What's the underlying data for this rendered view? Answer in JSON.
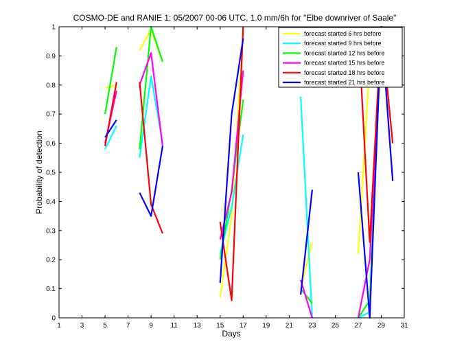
{
  "chart_data": {
    "type": "line",
    "title": "COSMO-DE and RANIE 1: 05/2007 00-06 UTC, 1.0 mm/6h for \"Elbe downriver of Saale\"",
    "xlabel": "Days",
    "ylabel": "Probability of detection",
    "xlim": [
      1,
      31
    ],
    "ylim": [
      0,
      1
    ],
    "xticks": [
      1,
      3,
      5,
      7,
      9,
      11,
      13,
      15,
      17,
      19,
      21,
      23,
      25,
      27,
      29,
      31
    ],
    "xtick_labels": [
      "1",
      "3",
      "5",
      "7",
      "9",
      "11",
      "13",
      "15",
      "17",
      "19",
      "21",
      "23",
      "25",
      "27",
      "29",
      "31"
    ],
    "yticks": [
      0,
      0.1,
      0.2,
      0.3,
      0.4,
      0.5,
      0.6,
      0.7,
      0.8,
      0.9,
      1
    ],
    "ytick_labels": [
      "0",
      "0.1",
      "0.2",
      "0.3",
      "0.4",
      "0.5",
      "0.6",
      "0.7",
      "0.8",
      "0.9",
      "1"
    ],
    "legend_position": "top-right",
    "series": [
      {
        "name": "forecast started 6 hrs before",
        "color": "#ffff00",
        "segments": [
          [
            [
              5,
              0.79
            ],
            [
              6,
              0.8
            ]
          ],
          [
            [
              8,
              0.92
            ],
            [
              9,
              0.99
            ],
            [
              10,
              0.88
            ]
          ],
          [
            [
              15,
              0.07
            ],
            [
              16,
              0.35
            ],
            [
              17,
              0.98
            ]
          ],
          [
            [
              22,
              0.1
            ],
            [
              23,
              0.26
            ]
          ],
          [
            [
              27,
              0.22
            ],
            [
              28,
              0.87
            ],
            [
              29,
              0.97
            ],
            [
              30,
              0.85
            ]
          ]
        ]
      },
      {
        "name": "forecast started 9 hrs before",
        "color": "#00ffff",
        "segments": [
          [
            [
              5,
              0.58
            ],
            [
              6,
              0.66
            ]
          ],
          [
            [
              8,
              0.55
            ],
            [
              9,
              0.83
            ],
            [
              10,
              0.6
            ]
          ],
          [
            [
              15,
              0.22
            ],
            [
              16,
              0.38
            ],
            [
              17,
              0.63
            ]
          ],
          [
            [
              22,
              0.76
            ],
            [
              23,
              0.0
            ]
          ],
          [
            [
              27,
              0.0
            ],
            [
              28,
              0.02
            ],
            [
              29,
              0.99
            ],
            [
              30,
              0.92
            ]
          ]
        ]
      },
      {
        "name": "forecast started 12 hrs before",
        "color": "#00ff00",
        "segments": [
          [
            [
              5,
              0.7
            ],
            [
              6,
              0.93
            ]
          ],
          [
            [
              8,
              0.58
            ],
            [
              9,
              1.0
            ],
            [
              10,
              0.88
            ]
          ],
          [
            [
              15,
              0.2
            ],
            [
              16,
              0.44
            ],
            [
              17,
              0.75
            ]
          ],
          [
            [
              22,
              0.1
            ],
            [
              23,
              0.05
            ]
          ],
          [
            [
              27,
              0.0
            ],
            [
              28,
              0.06
            ],
            [
              29,
              0.97
            ],
            [
              30,
              0.85
            ]
          ]
        ]
      },
      {
        "name": "forecast started 15 hrs before",
        "color": "#ff00ff",
        "segments": [
          [
            [
              5,
              0.6
            ],
            [
              6,
              0.78
            ]
          ],
          [
            [
              8,
              0.8
            ],
            [
              9,
              0.91
            ],
            [
              10,
              0.59
            ]
          ],
          [
            [
              15,
              0.27
            ],
            [
              16,
              0.43
            ],
            [
              17,
              0.85
            ]
          ],
          [
            [
              22,
              0.13
            ],
            [
              23,
              0.0
            ]
          ],
          [
            [
              27,
              0.0
            ],
            [
              28,
              0.2
            ],
            [
              29,
              0.98
            ],
            [
              30,
              0.92
            ]
          ]
        ]
      },
      {
        "name": "forecast started 18 hrs before",
        "color": "#ff0000",
        "segments": [
          [
            [
              5,
              0.59
            ],
            [
              6,
              0.81
            ]
          ],
          [
            [
              8,
              0.81
            ],
            [
              9,
              0.39
            ],
            [
              10,
              0.29
            ]
          ],
          [
            [
              15,
              0.33
            ],
            [
              16,
              0.06
            ],
            [
              17,
              1.0
            ]
          ],
          [
            [
              27,
              1.0
            ],
            [
              28,
              0.26
            ],
            [
              29,
              1.0
            ],
            [
              30,
              0.6
            ]
          ]
        ]
      },
      {
        "name": "forecast started 21 hrs before",
        "color": "#0000ff",
        "segments": [
          [
            [
              5,
              0.62
            ],
            [
              6,
              0.68
            ]
          ],
          [
            [
              8,
              0.43
            ],
            [
              9,
              0.35
            ],
            [
              10,
              0.59
            ]
          ],
          [
            [
              15,
              0.12
            ],
            [
              16,
              0.7
            ],
            [
              17,
              0.96
            ]
          ],
          [
            [
              22,
              0.08
            ],
            [
              23,
              0.44
            ]
          ],
          [
            [
              27,
              0.5
            ],
            [
              28,
              0.0
            ],
            [
              29,
              1.0
            ],
            [
              30,
              0.47
            ]
          ]
        ]
      }
    ]
  }
}
